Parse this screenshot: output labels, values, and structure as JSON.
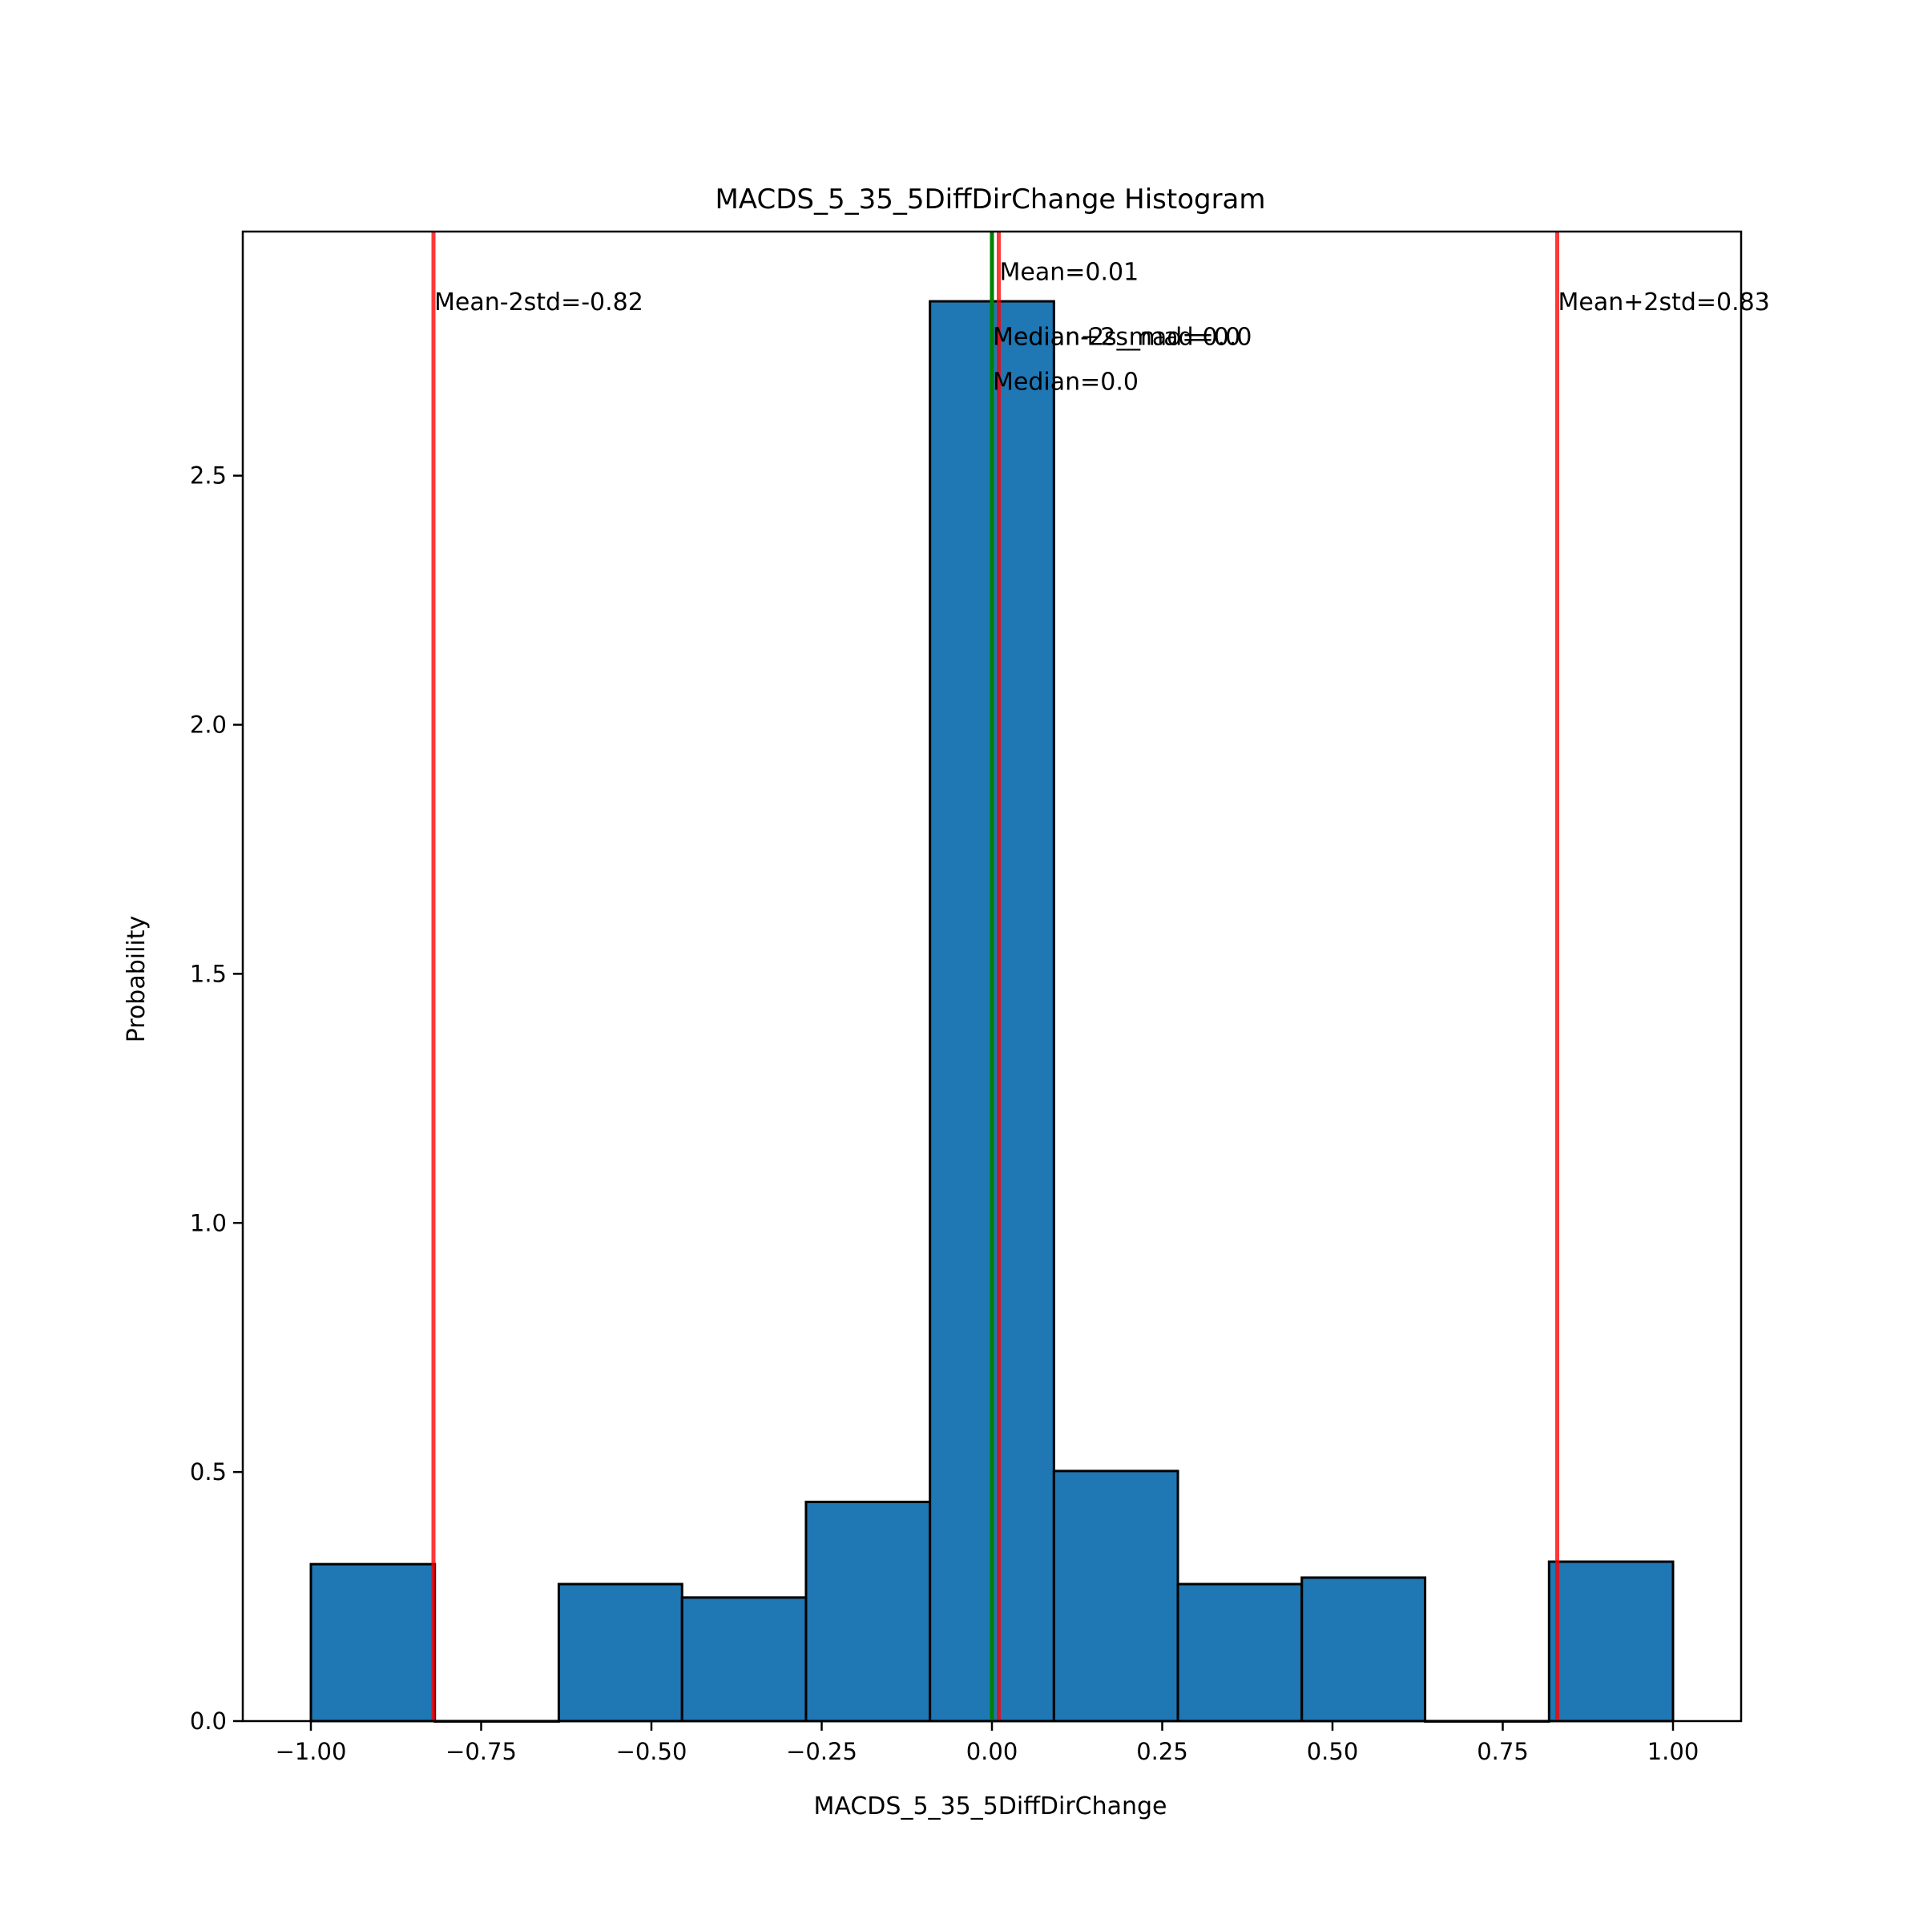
{
  "chart_data": {
    "type": "bar",
    "title": "MACDS_5_35_5DiffDirChange Histogram",
    "xlabel": "MACDS_5_35_5DiffDirChange",
    "ylabel": "Probability",
    "xlim": [
      -1.1,
      1.1
    ],
    "ylim": [
      0,
      2.99
    ],
    "x_ticks": [
      -1.0,
      -0.75,
      -0.5,
      -0.25,
      0.0,
      0.25,
      0.5,
      0.75,
      1.0
    ],
    "x_tick_labels": [
      "−1.00",
      "−0.75",
      "−0.50",
      "−0.25",
      "0.00",
      "0.25",
      "0.50",
      "0.75",
      "1.00"
    ],
    "y_ticks": [
      0.0,
      0.5,
      1.0,
      1.5,
      2.0,
      2.5
    ],
    "y_tick_labels": [
      "0.0",
      "0.5",
      "1.0",
      "1.5",
      "2.0",
      "2.5"
    ],
    "grid": false,
    "bar_color": "#1f77b4",
    "bar_edge_color": "#000000",
    "bins": [
      {
        "x0": -1.0,
        "x1": -0.818,
        "value": 0.315
      },
      {
        "x0": -0.818,
        "x1": -0.636,
        "value": 0.0
      },
      {
        "x0": -0.636,
        "x1": -0.455,
        "value": 0.275
      },
      {
        "x0": -0.455,
        "x1": -0.273,
        "value": 0.248
      },
      {
        "x0": -0.273,
        "x1": -0.091,
        "value": 0.44
      },
      {
        "x0": -0.091,
        "x1": 0.091,
        "value": 2.85
      },
      {
        "x0": 0.091,
        "x1": 0.273,
        "value": 0.502
      },
      {
        "x0": 0.273,
        "x1": 0.455,
        "value": 0.275
      },
      {
        "x0": 0.455,
        "x1": 0.636,
        "value": 0.288
      },
      {
        "x0": 0.636,
        "x1": 0.818,
        "value": 0.0
      },
      {
        "x0": 0.818,
        "x1": 1.0,
        "value": 0.32
      }
    ],
    "vlines": [
      {
        "x": -0.82,
        "color": "#ff0000",
        "label": "Mean-2std=-0.82",
        "label_y": 2.85,
        "anchor": "start"
      },
      {
        "x": 0.83,
        "color": "#ff0000",
        "label": "Mean+2std=0.83",
        "label_y": 2.85,
        "anchor": "start"
      },
      {
        "x": 0.01,
        "color": "#ff0000",
        "label": "Mean=0.01",
        "label_y": 2.91,
        "anchor": "start"
      },
      {
        "x": 0.0,
        "color": "#008000",
        "label": "Median=0.0",
        "label_y": 2.69,
        "anchor": "start"
      },
      {
        "x": 0.0,
        "color": "#008000",
        "label": "Median-2s_mad=0.0",
        "label_y": 2.78,
        "anchor": "start"
      },
      {
        "x": 0.0,
        "color": "#008000",
        "label": "Median+2s_mad=0.0",
        "label_y": 2.78,
        "anchor": "start"
      }
    ]
  }
}
